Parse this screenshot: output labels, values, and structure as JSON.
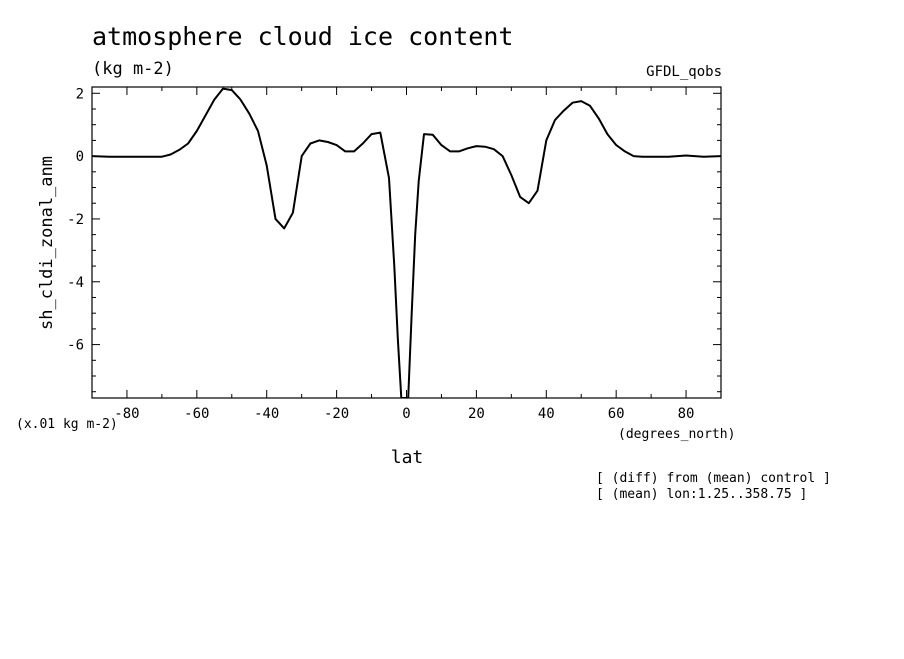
{
  "chart_data": {
    "type": "line",
    "title": "atmosphere cloud ice content",
    "subtitle": "(kg m-2)",
    "model_label": "GFDL_qobs",
    "xlabel": "lat",
    "x_units": "(degrees_north)",
    "ylabel": "sh_cldi_zonal_anm",
    "scale_note": "(x.01 kg m-2)",
    "notes": [
      "[ (diff) from (mean) control ]",
      "[ (mean) lon:1.25..358.75 ]"
    ],
    "xlim": [
      -90,
      90
    ],
    "ylim": [
      -7.7,
      2.2
    ],
    "x_ticks": [
      -80,
      -60,
      -40,
      -20,
      0,
      20,
      40,
      60,
      80
    ],
    "x_tick_labels": [
      "-80",
      "-60",
      "-40",
      "-20",
      "0",
      "20",
      "40",
      "60",
      "80"
    ],
    "y_ticks": [
      2,
      0,
      -2,
      -4,
      -6
    ],
    "y_tick_labels": [
      "2",
      "0",
      "-2",
      "-4",
      "-6"
    ],
    "grid": false,
    "line_color": "#000000",
    "series": [
      {
        "x": [
          -90,
          -85,
          -80,
          -75,
          -70,
          -67.5,
          -65,
          -62.5,
          -60,
          -57.5,
          -55,
          -52.5,
          -50,
          -47.5,
          -45,
          -42.5,
          -40,
          -37.5,
          -35,
          -32.5,
          -30,
          -27.5,
          -25,
          -22.5,
          -20,
          -17.5,
          -15,
          -12.5,
          -10,
          -7.5,
          -5,
          -3.5,
          -2.5,
          -1.5,
          -0.5,
          0.5,
          1.5,
          2.5,
          3.5,
          5,
          7.5,
          10,
          12.5,
          15,
          17.5,
          20,
          22.5,
          25,
          27.5,
          30,
          32.5,
          35,
          37.5,
          40,
          42.5,
          45,
          47.5,
          50,
          52.5,
          55,
          57.5,
          60,
          62.5,
          65,
          67.5,
          70,
          75,
          80,
          85,
          90
        ],
        "y": [
          0,
          -0.02,
          -0.02,
          -0.02,
          -0.02,
          0.05,
          0.2,
          0.4,
          0.8,
          1.3,
          1.8,
          2.15,
          2.1,
          1.8,
          1.35,
          0.8,
          -0.3,
          -2.0,
          -2.3,
          -1.8,
          0,
          0.4,
          0.5,
          0.45,
          0.35,
          0.15,
          0.15,
          0.4,
          0.7,
          0.75,
          -0.7,
          -3.5,
          -5.8,
          -7.7,
          -7.7,
          -7.7,
          -5.0,
          -2.5,
          -0.8,
          0.7,
          0.68,
          0.35,
          0.15,
          0.15,
          0.25,
          0.32,
          0.3,
          0.22,
          0.0,
          -0.6,
          -1.3,
          -1.5,
          -1.1,
          0.5,
          1.15,
          1.45,
          1.7,
          1.75,
          1.6,
          1.2,
          0.7,
          0.35,
          0.15,
          0.0,
          -0.02,
          -0.02,
          -0.02,
          0.02,
          -0.02,
          0
        ]
      }
    ]
  }
}
